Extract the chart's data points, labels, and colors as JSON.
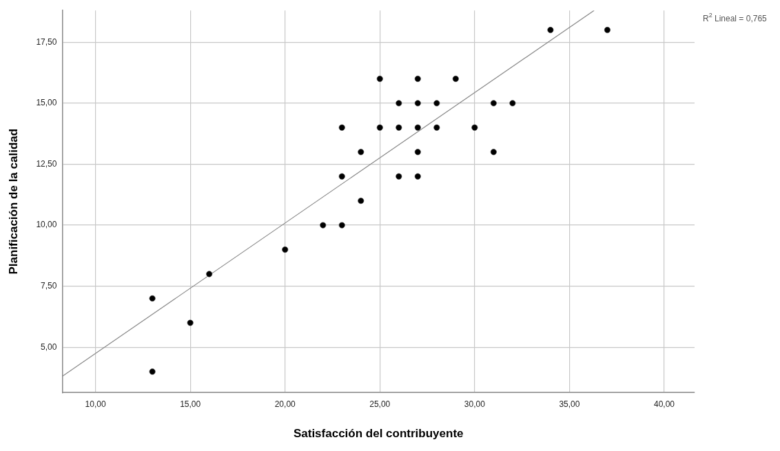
{
  "chart_data": {
    "type": "scatter",
    "xlabel": "Satisfacción del contribuyente",
    "ylabel": "Planificación de la calidad",
    "annotations": [
      "R$^{2}$ Lineal = 0,765"
    ],
    "xlim": [
      8.25,
      41.6
    ],
    "ylim": [
      3.14,
      18.8
    ],
    "xticks": [
      {
        "value": 10,
        "label": "10,00"
      },
      {
        "value": 15,
        "label": "15,00"
      },
      {
        "value": 20,
        "label": "20,00"
      },
      {
        "value": 25,
        "label": "25,00"
      },
      {
        "value": 30,
        "label": "30,00"
      },
      {
        "value": 35,
        "label": "35,00"
      },
      {
        "value": 40,
        "label": "40,00"
      }
    ],
    "yticks": [
      {
        "value": 5,
        "label": "5,00"
      },
      {
        "value": 7.5,
        "label": "7,50"
      },
      {
        "value": 10,
        "label": "10,00"
      },
      {
        "value": 12.5,
        "label": "12,50"
      },
      {
        "value": 15,
        "label": "15,00"
      },
      {
        "value": 17.5,
        "label": "17,50"
      }
    ],
    "grid": true,
    "legend": false,
    "marker": "circle",
    "series": [
      {
        "type": "scatter",
        "color": "#000000",
        "x": [
          13,
          13,
          15,
          16,
          20,
          22,
          23,
          23,
          23,
          24,
          24,
          25,
          25,
          26,
          26,
          26,
          27,
          27,
          27,
          27,
          27,
          28,
          28,
          29,
          30,
          31,
          31,
          32,
          34,
          37
        ],
        "values": [
          4,
          7,
          6,
          8,
          9,
          10,
          10,
          12,
          14,
          11,
          13,
          14,
          16,
          12,
          14,
          15,
          12,
          13,
          14,
          15,
          16,
          14,
          15,
          16,
          14,
          13,
          15,
          15,
          18,
          18
        ]
      },
      {
        "type": "line",
        "color": "#888888",
        "marker": "none",
        "x": [
          8.25,
          36.3
        ],
        "values": [
          3.81,
          18.8
        ]
      }
    ]
  }
}
